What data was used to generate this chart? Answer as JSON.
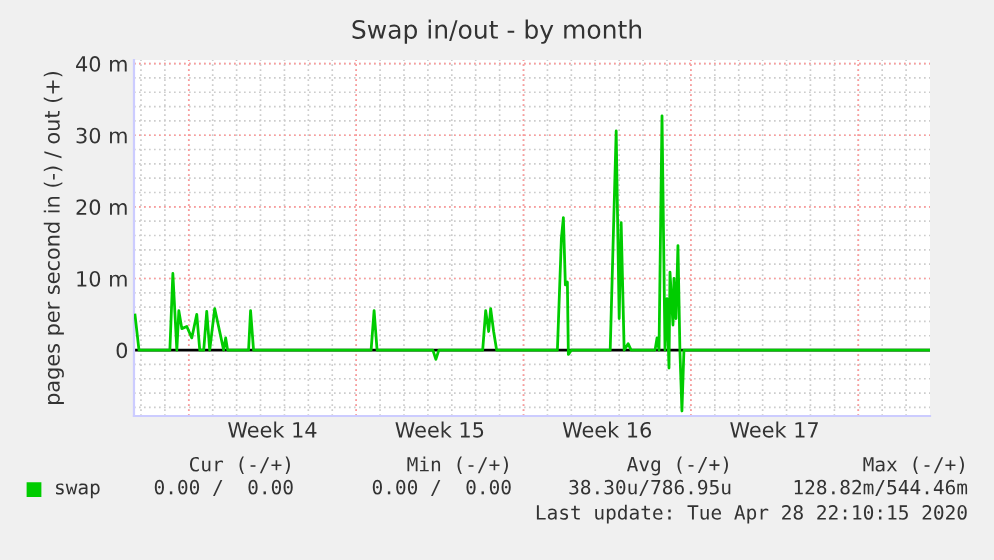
{
  "chart_data": {
    "type": "line",
    "title": "Swap in/out - by month",
    "ylabel": "pages per second in (-) / out (+)",
    "xlim": [
      "2020-03-27T17:00",
      "2020-04-30T00:00"
    ],
    "xticks": [
      {
        "value": "2020-03-30T00:00",
        "label": null
      },
      {
        "value": "2020-04-02T12:00",
        "label": "Week 14"
      },
      {
        "value": "2020-04-06T00:00",
        "label": null
      },
      {
        "value": "2020-04-09T12:00",
        "label": "Week 15"
      },
      {
        "value": "2020-04-13T00:00",
        "label": null
      },
      {
        "value": "2020-04-16T12:00",
        "label": "Week 16"
      },
      {
        "value": "2020-04-20T00:00",
        "label": null
      },
      {
        "value": "2020-04-23T12:00",
        "label": "Week 17"
      },
      {
        "value": "2020-04-27T00:00",
        "label": null
      }
    ],
    "ylim": [
      -9.2,
      40.5
    ],
    "yticks": [
      0,
      {
        "value": 10,
        "label": "10 m"
      },
      {
        "value": 20,
        "label": "20 m"
      },
      {
        "value": 30,
        "label": "30 m"
      },
      {
        "value": 40,
        "label": "40 m"
      }
    ],
    "grid": true,
    "legend": "bottom left",
    "marker": "none",
    "line_style": "solid",
    "ref_lines": [
      {
        "axis": "y",
        "value": 0,
        "color": "#000000"
      }
    ],
    "series": [
      {
        "name": "swap",
        "color": "#00cc00",
        "x": [
          "2020-03-27T18:00",
          "2020-03-27T22:00",
          "2020-03-29T05:00",
          "2020-03-29T08:00",
          "2020-03-29T12:00",
          "2020-03-29T14:00",
          "2020-03-29T17:00",
          "2020-03-29T22:00",
          "2020-03-30T03:00",
          "2020-03-30T08:00",
          "2020-03-30T11:00",
          "2020-03-30T15:00",
          "2020-03-30T18:00",
          "2020-03-30T21:00",
          "2020-03-31T02:00",
          "2020-03-31T07:00",
          "2020-03-31T11:00",
          "2020-03-31T13:00",
          "2020-03-31T15:00",
          "2020-04-01T12:00",
          "2020-04-01T14:00",
          "2020-04-01T17:00",
          "2020-04-06T15:00",
          "2020-04-06T18:00",
          "2020-04-06T21:00",
          "2020-04-09T05:00",
          "2020-04-09T08:00",
          "2020-04-09T11:00",
          "2020-04-11T07:00",
          "2020-04-11T10:00",
          "2020-04-11T13:00",
          "2020-04-11T15:00",
          "2020-04-11T18:00",
          "2020-04-11T21:00",
          "2020-04-14T10:00",
          "2020-04-14T14:00",
          "2020-04-14T16:00",
          "2020-04-14T18:00",
          "2020-04-14T20:00",
          "2020-04-14T21:00",
          "2020-04-15T00:00",
          "2020-04-16T15:00",
          "2020-04-16T21:00",
          "2020-04-17T00:00",
          "2020-04-17T02:00",
          "2020-04-17T05:00",
          "2020-04-17T09:00",
          "2020-04-17T12:00",
          "2020-04-18T12:00",
          "2020-04-18T14:00",
          "2020-04-18T16:00",
          "2020-04-18T19:00",
          "2020-04-18T22:00",
          "2020-04-19T00:00",
          "2020-04-19T02:00",
          "2020-04-19T03:00",
          "2020-04-19T06:00",
          "2020-04-19T07:00",
          "2020-04-19T09:00",
          "2020-04-19T11:00",
          "2020-04-19T13:00",
          "2020-04-19T15:00",
          "2020-04-19T17:00",
          "2020-04-30T00:00"
        ],
        "values": [
          4.9,
          0,
          0,
          10.7,
          0,
          5.5,
          3.0,
          3.3,
          1.7,
          5.0,
          0,
          0,
          5.4,
          0,
          5.8,
          2.6,
          0,
          1.7,
          0,
          0,
          5.5,
          0,
          0,
          5.5,
          0,
          0,
          -1.3,
          0,
          0,
          5.5,
          2.6,
          5.8,
          2.6,
          0,
          0,
          15.6,
          18.5,
          9.1,
          9.5,
          -0.6,
          0,
          0,
          30.6,
          4.4,
          17.8,
          0,
          0.9,
          0,
          0,
          1.7,
          0,
          32.7,
          0,
          7.2,
          -2.5,
          10.9,
          3.5,
          10.0,
          4.4,
          14.6,
          -0.2,
          -8.5,
          0,
          0
        ]
      }
    ],
    "annotations": [
      "Cur (-/+)",
      "Min (-/+)",
      "Avg (-/+)",
      "Max (-/+)",
      "0.00 /  0.00",
      "0.00 /  0.00",
      "38.30u/786.95u",
      "128.82m/544.46m",
      "Last update: Tue Apr 28 22:10:15 2020"
    ]
  }
}
